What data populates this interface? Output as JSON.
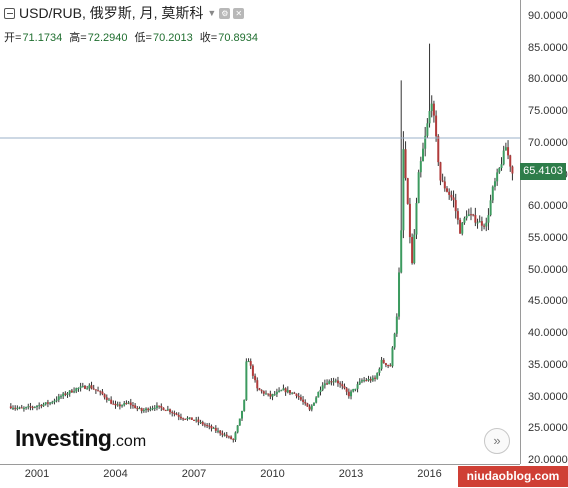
{
  "header": {
    "title": "USD/RUB, 俄罗斯, 月, 莫斯科",
    "caret": "▼",
    "icons": [
      "settings-icon",
      "close-icon"
    ]
  },
  "ohlc": {
    "open_label": "开=",
    "open": "71.1734",
    "high_label": "高=",
    "high": "72.2940",
    "low_label": "低=",
    "low": "70.2013",
    "close_label": "收=",
    "close": "70.8934"
  },
  "price_tag": {
    "value": "65.4103",
    "color": "#2e7d4a"
  },
  "logo": {
    "main": "Investing",
    "suffix": ".com"
  },
  "scroll_button": {
    "glyph": "»"
  },
  "watermark": "niudaoblog.com",
  "chart_data": {
    "type": "candlestick",
    "series_name": "USD/RUB",
    "x_ticks": [
      "2001",
      "2004",
      "2007",
      "2010",
      "2013",
      "2016",
      "20"
    ],
    "y_ticks": [
      "90.0000",
      "85.0000",
      "80.0000",
      "75.0000",
      "70.0000",
      "65.0000",
      "60.0000",
      "55.0000",
      "50.0000",
      "45.0000",
      "40.0000",
      "35.0000",
      "30.0000",
      "25.0000",
      "20.0000"
    ],
    "ylim": [
      19.0,
      91.5
    ],
    "crosshair_y": 71.0,
    "up_color": "#3c9a5f",
    "down_color": "#b03a3a",
    "close_path": [
      [
        "2000-01",
        28.6
      ],
      [
        "2000-06",
        28.2
      ],
      [
        "2001-01",
        28.7
      ],
      [
        "2001-07",
        29.2
      ],
      [
        "2002-01",
        30.4
      ],
      [
        "2002-07",
        31.4
      ],
      [
        "2003-01",
        31.8
      ],
      [
        "2003-07",
        30.5
      ],
      [
        "2004-01",
        28.6
      ],
      [
        "2004-07",
        29.1
      ],
      [
        "2005-01",
        27.9
      ],
      [
        "2005-07",
        28.6
      ],
      [
        "2006-01",
        28.1
      ],
      [
        "2006-07",
        26.9
      ],
      [
        "2007-01",
        26.5
      ],
      [
        "2007-07",
        25.5
      ],
      [
        "2008-01",
        24.5
      ],
      [
        "2008-07",
        23.3
      ],
      [
        "2008-10",
        26.5
      ],
      [
        "2008-12",
        29.4
      ],
      [
        "2009-01",
        35.4
      ],
      [
        "2009-02",
        36.0
      ],
      [
        "2009-06",
        31.3
      ],
      [
        "2009-12",
        30.2
      ],
      [
        "2010-06",
        31.2
      ],
      [
        "2010-12",
        30.5
      ],
      [
        "2011-06",
        28.0
      ],
      [
        "2011-12",
        32.2
      ],
      [
        "2012-06",
        32.8
      ],
      [
        "2012-12",
        30.4
      ],
      [
        "2013-06",
        32.7
      ],
      [
        "2013-12",
        32.9
      ],
      [
        "2014-03",
        35.7
      ],
      [
        "2014-07",
        35.0
      ],
      [
        "2014-10",
        43.0
      ],
      [
        "2014-12",
        56.0
      ],
      [
        "2015-01",
        69.0
      ],
      [
        "2015-05",
        51.0
      ],
      [
        "2015-08",
        65.0
      ],
      [
        "2015-12",
        73.0
      ],
      [
        "2016-01",
        75.0
      ],
      [
        "2016-02",
        77.0
      ],
      [
        "2016-06",
        64.3
      ],
      [
        "2016-12",
        61.0
      ],
      [
        "2017-03",
        56.3
      ],
      [
        "2017-06",
        59.0
      ],
      [
        "2017-12",
        57.6
      ],
      [
        "2018-03",
        57.3
      ],
      [
        "2018-06",
        62.8
      ],
      [
        "2018-09",
        66.0
      ],
      [
        "2018-12",
        69.5
      ],
      [
        "2019-03",
        65.4
      ]
    ],
    "spikes": [
      [
        "2014-12",
        80.0
      ],
      [
        "2016-01",
        85.8
      ],
      [
        "2015-01",
        72.0
      ]
    ]
  }
}
